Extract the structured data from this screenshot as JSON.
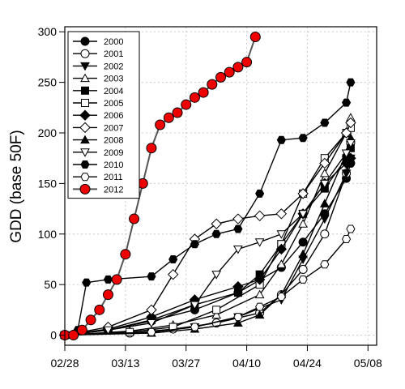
{
  "chart_data": {
    "type": "line",
    "title": "",
    "xlabel": "",
    "ylabel": "GDD (base 50F)",
    "x_tick_labels": [
      "02/28",
      "03/13",
      "03/27",
      "04/10",
      "04/24",
      "05/08"
    ],
    "y_ticks": [
      0,
      50,
      100,
      150,
      200,
      250,
      300
    ],
    "ylim": [
      -10,
      305
    ],
    "xlim_days": [
      0,
      72
    ],
    "grid": true,
    "legend_position": "top-left",
    "series": [
      {
        "name": "2000",
        "marker": "circle-filled",
        "color": "#000000",
        "x": [
          0,
          10,
          20,
          30,
          40,
          50,
          55,
          60,
          65,
          66
        ],
        "y": [
          0,
          5,
          14,
          25,
          42,
          67,
          92,
          120,
          155,
          170
        ]
      },
      {
        "name": "2001",
        "marker": "circle-open",
        "color": "#000000",
        "x": [
          0,
          15,
          25,
          35,
          45,
          50,
          55,
          60,
          65,
          66
        ],
        "y": [
          0,
          2,
          6,
          12,
          22,
          40,
          65,
          100,
          160,
          190
        ]
      },
      {
        "name": "2002",
        "marker": "triangle-down-filled",
        "color": "#000000",
        "x": [
          0,
          20,
          30,
          40,
          50,
          55,
          60,
          65,
          66
        ],
        "y": [
          0,
          3,
          8,
          18,
          35,
          75,
          115,
          160,
          175
        ]
      },
      {
        "name": "2003",
        "marker": "triangle-up-open",
        "color": "#000000",
        "x": [
          0,
          15,
          25,
          35,
          45,
          50,
          55,
          60,
          65,
          66
        ],
        "y": [
          0,
          4,
          10,
          20,
          40,
          70,
          110,
          160,
          200,
          215
        ]
      },
      {
        "name": "2004",
        "marker": "square-filled",
        "color": "#000000",
        "x": [
          0,
          10,
          20,
          30,
          40,
          45,
          50,
          55,
          60,
          65,
          66
        ],
        "y": [
          0,
          5,
          15,
          30,
          42,
          60,
          90,
          120,
          145,
          175,
          185
        ]
      },
      {
        "name": "2005",
        "marker": "square-open",
        "color": "#000000",
        "x": [
          0,
          15,
          25,
          35,
          45,
          50,
          55,
          60,
          65,
          66
        ],
        "y": [
          0,
          3,
          8,
          25,
          50,
          90,
          140,
          175,
          200,
          205
        ]
      },
      {
        "name": "2006",
        "marker": "diamond-filled",
        "color": "#000000",
        "x": [
          0,
          10,
          20,
          30,
          40,
          45,
          50,
          55,
          60,
          65,
          66
        ],
        "y": [
          0,
          6,
          18,
          35,
          48,
          55,
          85,
          120,
          150,
          170,
          175
        ]
      },
      {
        "name": "2007",
        "marker": "diamond-open",
        "color": "#000000",
        "x": [
          0,
          10,
          20,
          25,
          30,
          35,
          40,
          45,
          50,
          55,
          60,
          65,
          66
        ],
        "y": [
          0,
          8,
          25,
          60,
          95,
          110,
          115,
          118,
          120,
          140,
          170,
          200,
          210
        ]
      },
      {
        "name": "2008",
        "marker": "triangle-up-filled",
        "color": "#000000",
        "x": [
          0,
          20,
          30,
          40,
          45,
          50,
          55,
          60,
          65,
          66
        ],
        "y": [
          0,
          2,
          6,
          12,
          20,
          40,
          80,
          130,
          180,
          195
        ]
      },
      {
        "name": "2009",
        "marker": "triangle-down-open",
        "color": "#000000",
        "x": [
          0,
          10,
          20,
          30,
          35,
          40,
          45,
          50,
          55,
          60,
          65,
          66
        ],
        "y": [
          0,
          5,
          12,
          30,
          60,
          85,
          92,
          100,
          120,
          150,
          180,
          190
        ]
      },
      {
        "name": "2010",
        "marker": "hexagon-filled",
        "color": "#000000",
        "x": [
          0,
          3,
          5,
          10,
          20,
          25,
          30,
          35,
          40,
          45,
          50,
          55,
          60,
          65,
          66
        ],
        "y": [
          0,
          5,
          52,
          55,
          58,
          75,
          90,
          100,
          105,
          140,
          193,
          195,
          210,
          230,
          250
        ]
      },
      {
        "name": "2011",
        "marker": "hexagon-open",
        "color": "#000000",
        "x": [
          0,
          20,
          30,
          40,
          45,
          50,
          55,
          60,
          65,
          66
        ],
        "y": [
          0,
          3,
          8,
          18,
          28,
          38,
          55,
          70,
          95,
          105
        ]
      },
      {
        "name": "2012",
        "marker": "circle-red",
        "color": "#ff0000",
        "x": [
          0,
          2,
          4,
          6,
          8,
          10,
          12,
          14,
          16,
          18,
          20,
          22,
          24,
          26,
          28,
          30,
          32,
          34,
          36,
          38,
          40,
          42,
          44
        ],
        "y": [
          0,
          0,
          5,
          15,
          25,
          40,
          55,
          80,
          115,
          150,
          185,
          208,
          215,
          220,
          228,
          235,
          240,
          248,
          255,
          260,
          265,
          270,
          295
        ]
      }
    ]
  }
}
